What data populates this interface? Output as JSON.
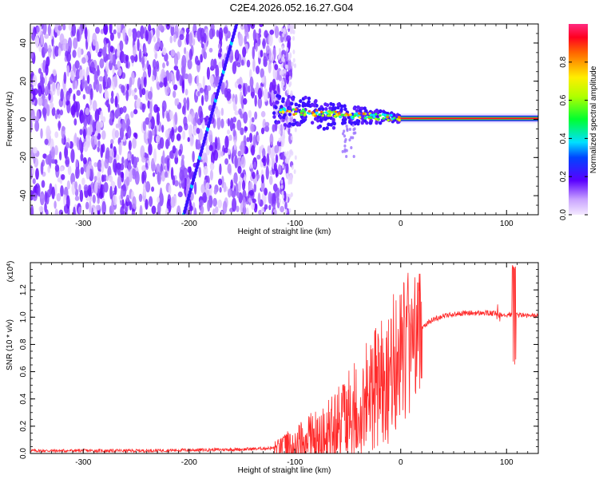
{
  "title": "C2E4.2026.052.16.27.G04",
  "chart_data": [
    {
      "type": "heatmap",
      "title": "C2E4.2026.052.16.27.G04",
      "xlabel": "Height of straight line (km)",
      "ylabel": "Frequency (Hz)",
      "xlim": [
        -350,
        130
      ],
      "ylim": [
        -50,
        50
      ],
      "xticks": [
        -300,
        -200,
        -100,
        0,
        100
      ],
      "yticks": [
        -40,
        -20,
        0,
        20,
        40
      ],
      "colorbar": {
        "label": "Normalized spectral amplitude",
        "range": [
          0,
          1
        ],
        "ticks": [
          0.0,
          0.2,
          0.4,
          0.6,
          0.8
        ]
      },
      "features": {
        "noise_region_x": [
          -350,
          -115
        ],
        "steady_tone_frequency": 0.5,
        "steady_tone_x": [
          0,
          130
        ],
        "wandering_tone_x": [
          -120,
          0
        ],
        "diagonal_streak": {
          "x": [
            -205,
            -155
          ],
          "freq": [
            -50,
            50
          ]
        }
      }
    },
    {
      "type": "line",
      "xlabel": "Height of straight line (km)",
      "ylabel": "SNR (10 * v/v)",
      "yscale_label": "(x10",
      "yscale_exp": "4",
      "y_multiplier": 10000,
      "xlim": [
        -350,
        130
      ],
      "ylim": [
        0,
        1.4
      ],
      "xticks": [
        -300,
        -200,
        -100,
        0,
        100
      ],
      "yticks": [
        0.0,
        0.2,
        0.4,
        0.6,
        0.8,
        1.0,
        1.2
      ],
      "series": [
        {
          "name": "SNR",
          "color": "#ff2a2a",
          "x": [
            -350,
            -300,
            -250,
            -200,
            -150,
            -120,
            -100,
            -80,
            -70,
            -60,
            -50,
            -40,
            -30,
            -20,
            -10,
            0,
            10,
            20,
            30,
            40,
            60,
            80,
            100,
            110,
            120,
            130
          ],
          "y": [
            0.02,
            0.02,
            0.02,
            0.025,
            0.03,
            0.04,
            0.06,
            0.1,
            0.15,
            0.2,
            0.25,
            0.33,
            0.42,
            0.5,
            0.6,
            0.72,
            0.84,
            0.93,
            0.98,
            1.01,
            1.03,
            1.03,
            1.02,
            1.02,
            1.01,
            1.01
          ]
        }
      ]
    }
  ]
}
